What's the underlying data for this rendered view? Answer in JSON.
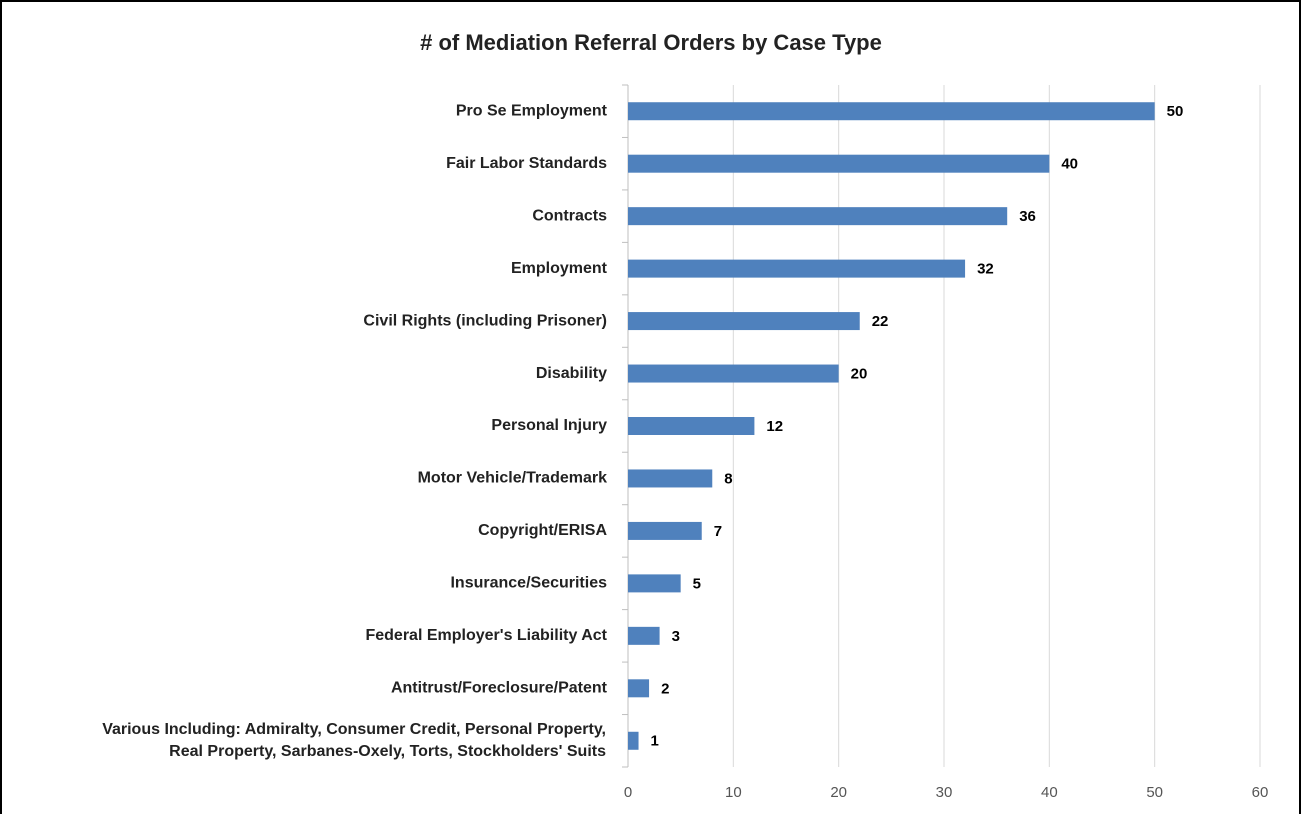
{
  "chart_data": {
    "type": "bar",
    "orientation": "horizontal",
    "title": "# of Mediation Referral Orders by Case Type",
    "categories": [
      "Pro Se Employment",
      "Fair Labor Standards",
      "Contracts",
      "Employment",
      "Civil Rights (including Prisoner)",
      "Disability",
      "Personal Injury",
      "Motor Vehicle/Trademark",
      "Copyright/ERISA",
      "Insurance/Securities",
      "Federal Employer's Liability Act",
      "Antitrust/Foreclosure/Patent",
      "Various Including: Admiralty, Consumer Credit,  Personal Property,\nReal Property, Sarbanes-Oxely, Torts, Stockholders' Suits"
    ],
    "values": [
      50,
      40,
      36,
      32,
      22,
      20,
      12,
      8,
      7,
      5,
      3,
      2,
      1
    ],
    "color": "#4f81bd",
    "xlim": [
      0,
      60
    ],
    "xticks": [
      0,
      10,
      20,
      30,
      40,
      50,
      60
    ],
    "grid": true
  }
}
